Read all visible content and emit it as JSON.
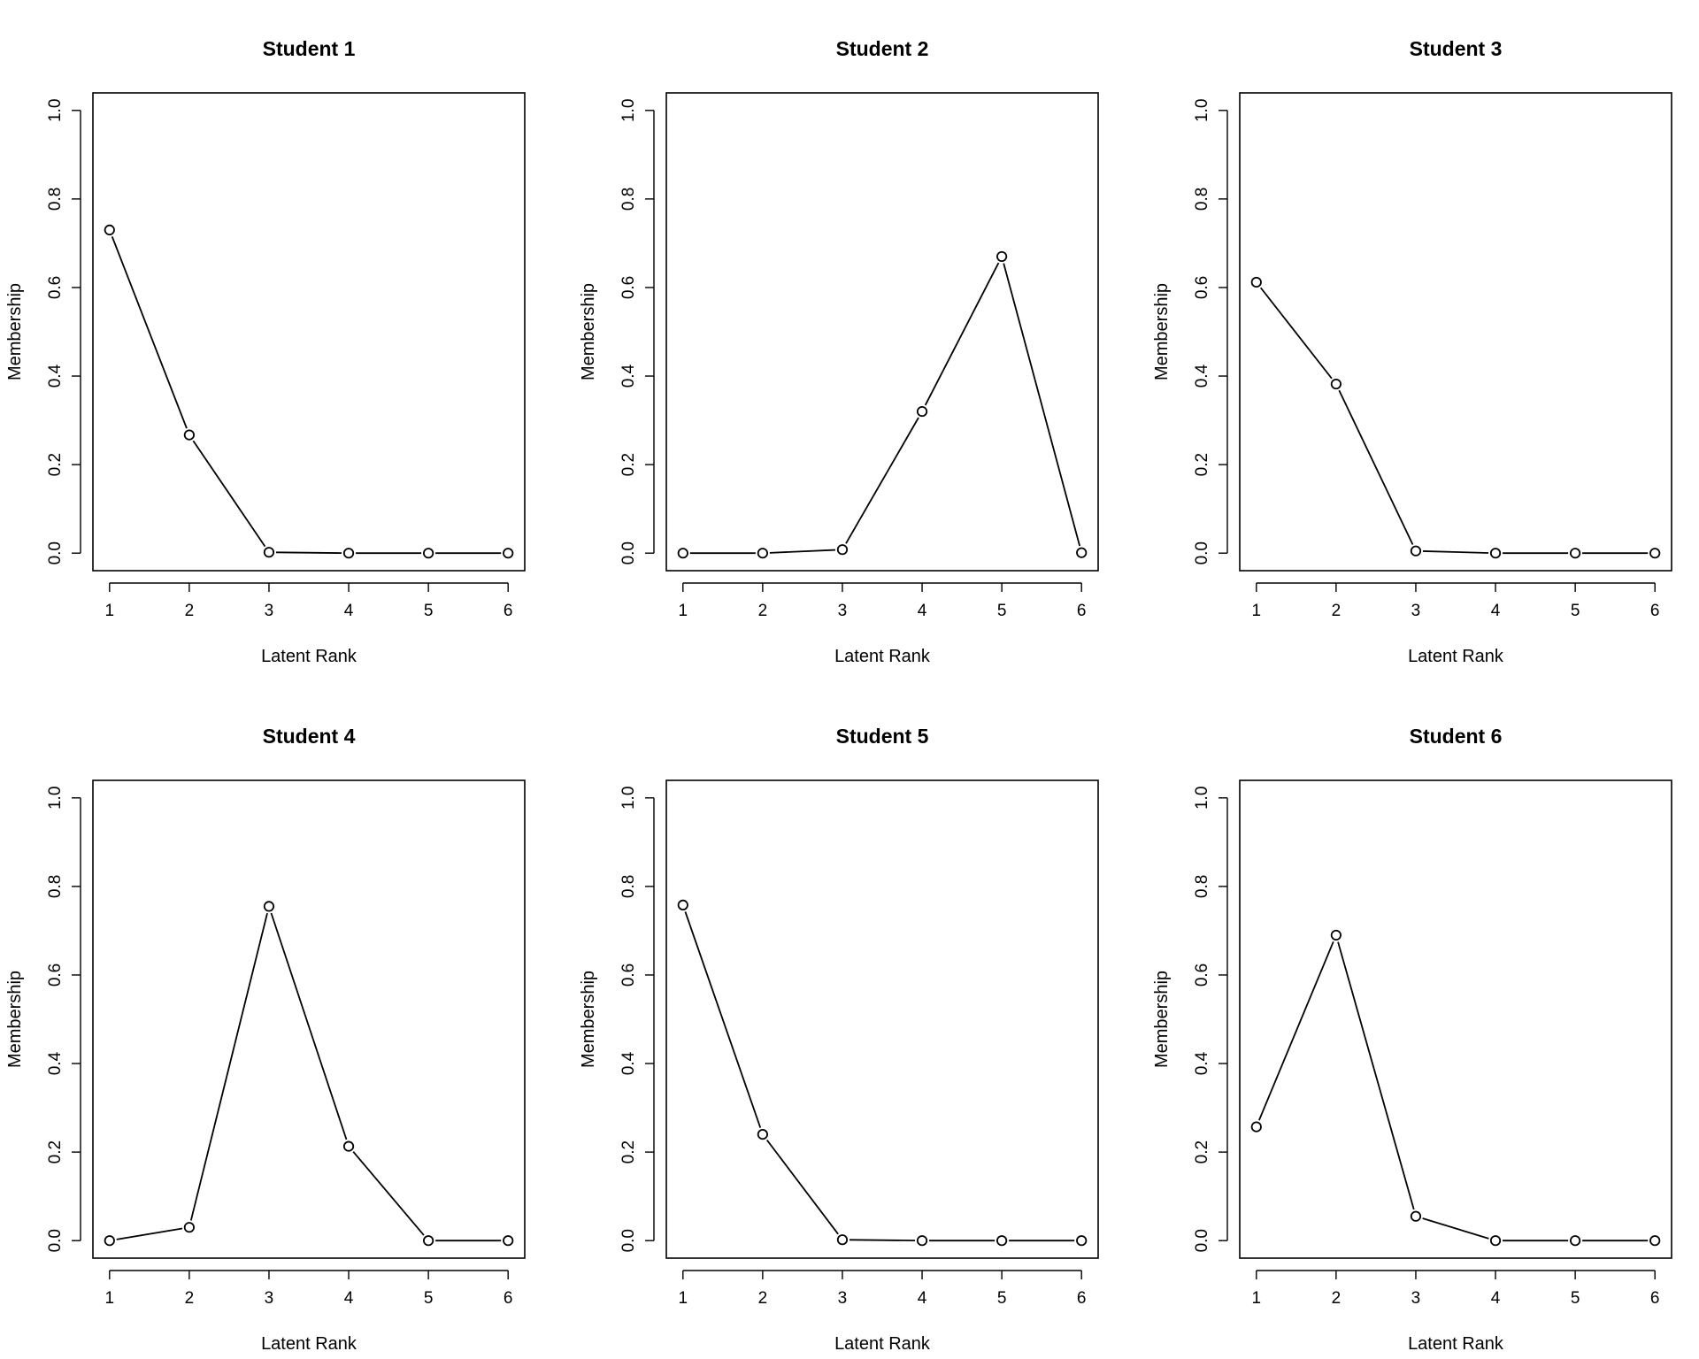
{
  "chart_data": [
    {
      "type": "line",
      "title": "Student 1",
      "xlabel": "Latent Rank",
      "ylabel": "Membership",
      "x": [
        1,
        2,
        3,
        4,
        5,
        6
      ],
      "xticks": [
        "1",
        "2",
        "3",
        "4",
        "5",
        "6"
      ],
      "ylim": [
        0,
        1
      ],
      "yticks": [
        "0.0",
        "0.2",
        "0.4",
        "0.6",
        "0.8",
        "1.0"
      ],
      "values": [
        0.73,
        0.267,
        0.002,
        0.0,
        0.0,
        0.0
      ],
      "marker": "open-circle",
      "line_color": "#000000",
      "grid": false
    },
    {
      "type": "line",
      "title": "Student 2",
      "xlabel": "Latent Rank",
      "ylabel": "Membership",
      "x": [
        1,
        2,
        3,
        4,
        5,
        6
      ],
      "xticks": [
        "1",
        "2",
        "3",
        "4",
        "5",
        "6"
      ],
      "ylim": [
        0,
        1
      ],
      "yticks": [
        "0.0",
        "0.2",
        "0.4",
        "0.6",
        "0.8",
        "1.0"
      ],
      "values": [
        0.0,
        0.0,
        0.008,
        0.32,
        0.67,
        0.001
      ],
      "marker": "open-circle",
      "line_color": "#000000",
      "grid": false
    },
    {
      "type": "line",
      "title": "Student 3",
      "xlabel": "Latent Rank",
      "ylabel": "Membership",
      "x": [
        1,
        2,
        3,
        4,
        5,
        6
      ],
      "xticks": [
        "1",
        "2",
        "3",
        "4",
        "5",
        "6"
      ],
      "ylim": [
        0,
        1
      ],
      "yticks": [
        "0.0",
        "0.2",
        "0.4",
        "0.6",
        "0.8",
        "1.0"
      ],
      "values": [
        0.612,
        0.382,
        0.005,
        0.0,
        0.0,
        0.0
      ],
      "marker": "open-circle",
      "line_color": "#000000",
      "grid": false
    },
    {
      "type": "line",
      "title": "Student 4",
      "xlabel": "Latent Rank",
      "ylabel": "Membership",
      "x": [
        1,
        2,
        3,
        4,
        5,
        6
      ],
      "xticks": [
        "1",
        "2",
        "3",
        "4",
        "5",
        "6"
      ],
      "ylim": [
        0,
        1
      ],
      "yticks": [
        "0.0",
        "0.2",
        "0.4",
        "0.6",
        "0.8",
        "1.0"
      ],
      "values": [
        0.0,
        0.03,
        0.755,
        0.213,
        0.0,
        0.0
      ],
      "marker": "open-circle",
      "line_color": "#000000",
      "grid": false
    },
    {
      "type": "line",
      "title": "Student 5",
      "xlabel": "Latent Rank",
      "ylabel": "Membership",
      "x": [
        1,
        2,
        3,
        4,
        5,
        6
      ],
      "xticks": [
        "1",
        "2",
        "3",
        "4",
        "5",
        "6"
      ],
      "ylim": [
        0,
        1
      ],
      "yticks": [
        "0.0",
        "0.2",
        "0.4",
        "0.6",
        "0.8",
        "1.0"
      ],
      "values": [
        0.758,
        0.24,
        0.002,
        0.0,
        0.0,
        0.0
      ],
      "marker": "open-circle",
      "line_color": "#000000",
      "grid": false
    },
    {
      "type": "line",
      "title": "Student 6",
      "xlabel": "Latent Rank",
      "ylabel": "Membership",
      "x": [
        1,
        2,
        3,
        4,
        5,
        6
      ],
      "xticks": [
        "1",
        "2",
        "3",
        "4",
        "5",
        "6"
      ],
      "ylim": [
        0,
        1
      ],
      "yticks": [
        "0.0",
        "0.2",
        "0.4",
        "0.6",
        "0.8",
        "1.0"
      ],
      "values": [
        0.257,
        0.69,
        0.055,
        0.0,
        0.0,
        0.0
      ],
      "marker": "open-circle",
      "line_color": "#000000",
      "grid": false
    }
  ]
}
